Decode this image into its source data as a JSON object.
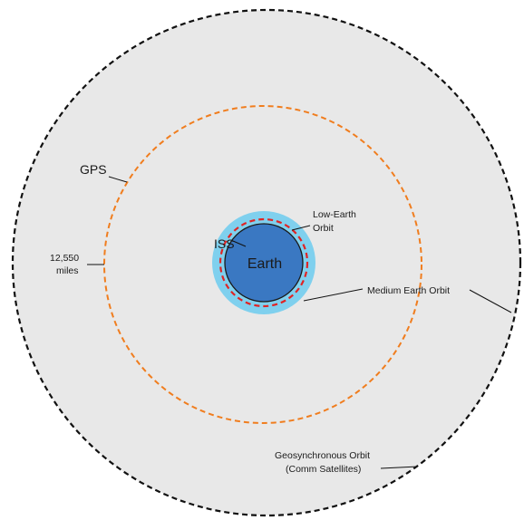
{
  "diagram": {
    "labels": {
      "earth": "Earth",
      "iss": "ISS",
      "low_earth_orbit_line1": "Low-Earth",
      "low_earth_orbit_line2": "Orbit",
      "gps": "GPS",
      "distance_value": "12,550",
      "distance_unit": "miles",
      "medium_earth_orbit": "Medium Earth Orbit",
      "geosynchronous_orbit_line1": "Geosynchronous Orbit",
      "geosynchronous_orbit_line2": "(Comm Satellites)"
    },
    "colors": {
      "background": "#ffffff",
      "geo_region_fill": "#e8e8e8",
      "geo_orbit_stroke": "#111111",
      "gps_orbit_stroke": "#f07d1e",
      "leo_band_fill": "#7fd0ee",
      "earth_fill": "#3a78c2",
      "earth_outline": "#1a1a1a",
      "iss_orbit_stroke": "#e02424",
      "leader_line": "#111111"
    }
  }
}
